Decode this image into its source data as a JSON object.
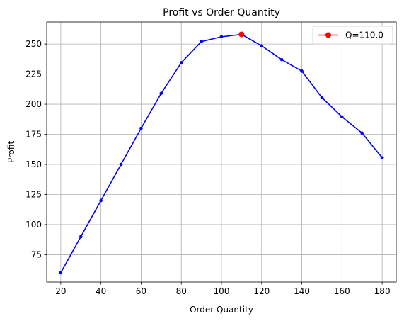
{
  "chart_data": {
    "type": "line",
    "title": "Profit vs Order Quantity",
    "xlabel": "Order Quantity",
    "ylabel": "Profit",
    "xlim": [
      13.0,
      187.0
    ],
    "ylim": [
      52.3,
      268.3
    ],
    "xticks": [
      20,
      40,
      60,
      80,
      100,
      120,
      140,
      160,
      180
    ],
    "yticks": [
      75,
      100,
      125,
      150,
      175,
      200,
      225,
      250
    ],
    "grid": true,
    "legend_position": "top-right",
    "series": [
      {
        "color": "#0000ff",
        "marker": "point",
        "x": [
          20,
          30,
          40,
          50,
          60,
          70,
          80,
          90,
          100,
          110,
          120,
          130,
          140,
          150,
          160,
          170,
          180
        ],
        "y": [
          60,
          90,
          120,
          150,
          180,
          209,
          234.5,
          252,
          256,
          258,
          248.5,
          237,
          227.5,
          205.5,
          189.5,
          176,
          155.5
        ]
      },
      {
        "name": "Q=110.0",
        "color": "#ff0000",
        "marker": "circle",
        "x": [
          110
        ],
        "y": [
          258
        ]
      }
    ]
  }
}
